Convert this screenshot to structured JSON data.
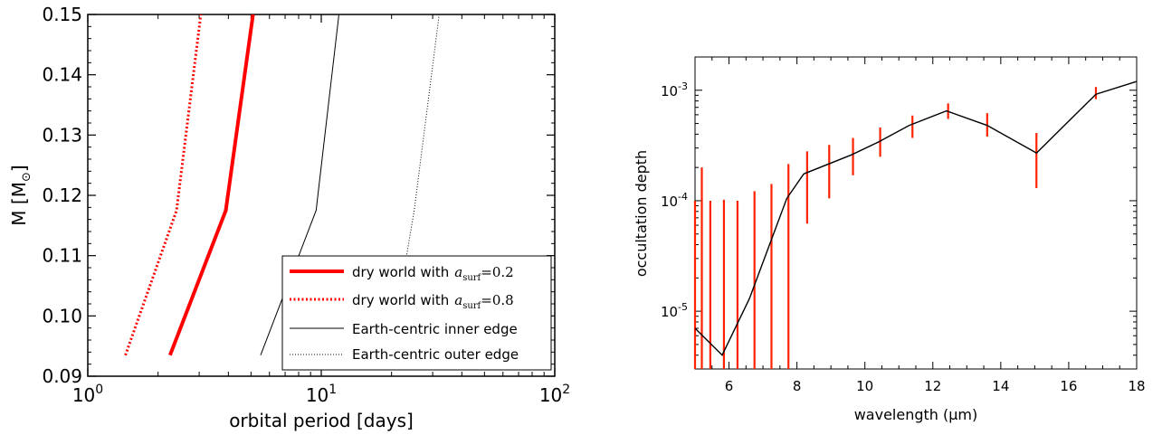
{
  "chart_data": [
    {
      "type": "line",
      "xlabel": "orbital period [days]",
      "ylabel": "M [M",
      "ylabel_symbol": "⊙",
      "ylabel_close": "]",
      "xscale": "log",
      "xlim": [
        1,
        100
      ],
      "ylim": [
        0.09,
        0.15
      ],
      "x_ticks": [
        {
          "value": 1,
          "base": "10",
          "exp": "0"
        },
        {
          "value": 10,
          "base": "10",
          "exp": "1"
        },
        {
          "value": 100,
          "base": "10",
          "exp": "2"
        }
      ],
      "y_ticks": [
        "0.09",
        "0.10",
        "0.11",
        "0.12",
        "0.13",
        "0.14",
        "0.15"
      ],
      "legend_position": "lower-right",
      "series": [
        {
          "name": "dry world with",
          "math": "a",
          "math_sub": "surf",
          "math_tail": "=0.2",
          "color": "#ff0000",
          "style": "solid-thick",
          "points": [
            [
              2.25,
              0.0935
            ],
            [
              3.9,
              0.1175
            ],
            [
              5.1,
              0.15
            ]
          ]
        },
        {
          "name": "dry world with",
          "math": "a",
          "math_sub": "surf",
          "math_tail": "=0.8",
          "color": "#ff0000",
          "style": "dotted-thick",
          "points": [
            [
              1.45,
              0.0935
            ],
            [
              2.4,
              0.1175
            ],
            [
              3.05,
              0.15
            ]
          ]
        },
        {
          "name": "Earth-centric inner edge",
          "color": "#000000",
          "style": "solid-thin",
          "points": [
            [
              5.5,
              0.0935
            ],
            [
              9.5,
              0.1175
            ],
            [
              11.9,
              0.15
            ]
          ]
        },
        {
          "name": "Earth-centric outer edge",
          "color": "#000000",
          "style": "dotted-thin",
          "points": [
            [
              21,
              0.1
            ],
            [
              25,
              0.1175
            ],
            [
              32,
              0.15
            ]
          ]
        }
      ]
    },
    {
      "type": "line",
      "xlabel": "wavelength (μm)",
      "ylabel": "occultation depth",
      "yscale": "log",
      "xlim": [
        5,
        18
      ],
      "ylim": [
        3e-06,
        0.002
      ],
      "x_ticks": [
        "6",
        "8",
        "10",
        "12",
        "14",
        "16",
        "18"
      ],
      "y_ticks": [
        {
          "value": 1e-05,
          "base": "10",
          "exp": "-5"
        },
        {
          "value": 0.0001,
          "base": "10",
          "exp": "-4"
        },
        {
          "value": 0.001,
          "base": "10",
          "exp": "-3"
        }
      ],
      "model_color": "#000000",
      "errorbar_color": "#ff2200",
      "model": {
        "x": [
          5.0,
          5.8,
          6.6,
          7.7,
          8.2,
          9.6,
          10.4,
          11.3,
          12.4,
          13.6,
          15.05,
          16.8,
          18.0
        ],
        "y": [
          7e-06,
          4e-06,
          1.3e-05,
          0.000105,
          0.000175,
          0.00026,
          0.00034,
          0.00048,
          0.00065,
          0.00048,
          0.00027,
          0.00092,
          0.0012
        ]
      },
      "error_bars": [
        {
          "x": 5.0,
          "lo": 3e-06,
          "hi": 0.0001
        },
        {
          "x": 5.2,
          "lo": 3e-06,
          "hi": 0.0002
        },
        {
          "x": 5.45,
          "lo": 3e-06,
          "hi": 0.0001
        },
        {
          "x": 5.85,
          "lo": 3e-06,
          "hi": 0.000102
        },
        {
          "x": 6.25,
          "lo": 3e-06,
          "hi": 0.0001
        },
        {
          "x": 6.75,
          "lo": 3e-06,
          "hi": 0.000122
        },
        {
          "x": 7.25,
          "lo": 3e-06,
          "hi": 0.000142
        },
        {
          "x": 7.75,
          "lo": 3e-06,
          "hi": 0.000215
        },
        {
          "x": 8.3,
          "lo": 6.2e-05,
          "hi": 0.00028
        },
        {
          "x": 8.95,
          "lo": 0.000105,
          "hi": 0.00032
        },
        {
          "x": 9.65,
          "lo": 0.00017,
          "hi": 0.00037
        },
        {
          "x": 10.45,
          "lo": 0.00025,
          "hi": 0.00046
        },
        {
          "x": 11.4,
          "lo": 0.00037,
          "hi": 0.00059
        },
        {
          "x": 12.45,
          "lo": 0.00055,
          "hi": 0.00076
        },
        {
          "x": 13.6,
          "lo": 0.00038,
          "hi": 0.00062
        },
        {
          "x": 15.05,
          "lo": 0.00013,
          "hi": 0.00041
        },
        {
          "x": 16.8,
          "lo": 0.00083,
          "hi": 0.00107
        }
      ]
    }
  ]
}
